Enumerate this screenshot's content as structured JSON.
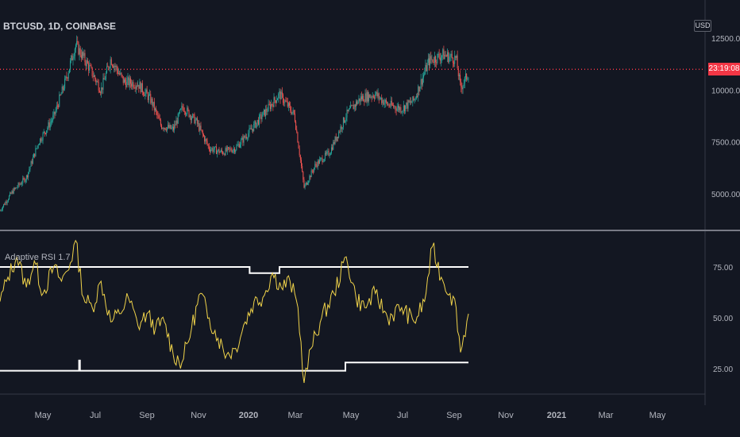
{
  "header": {
    "symbol": "BTCUSD, 1D, COINBASE"
  },
  "indicator": {
    "label": "Adaptive RSI 1.7"
  },
  "price_axis": {
    "currency": "USD",
    "countdown": "23:19:08"
  },
  "colors": {
    "background": "#131722",
    "up": "#26a69a",
    "down": "#ef5350",
    "rsi_line": "#f0d34a",
    "bands": "#ffffff",
    "price_line": "#f23645",
    "separator": "#363a45"
  },
  "chart_data": [
    {
      "type": "candlestick",
      "title": "BTCUSD, 1D, COINBASE",
      "ylabel": "USD",
      "ylim": [
        4000,
        12500
      ],
      "yticks": [
        5000,
        7500,
        10000,
        12500
      ],
      "ytick_labels": [
        "5000.00",
        "7500.00",
        "10000.00",
        "12500.00"
      ],
      "x_tick_labels": [
        "May",
        "Jul",
        "Sep",
        "Nov",
        "2020",
        "Mar",
        "May",
        "Jul",
        "Sep",
        "Nov",
        "2021",
        "Mar",
        "May"
      ],
      "price_line_value": 11000,
      "series": [
        {
          "x": [
            "2019-04-01",
            "2019-04-15",
            "2019-05-01",
            "2019-05-15",
            "2019-06-01",
            "2019-06-15",
            "2019-06-26",
            "2019-07-10",
            "2019-07-25",
            "2019-08-05",
            "2019-08-20",
            "2019-09-05",
            "2019-09-20",
            "2019-10-01",
            "2019-10-15",
            "2019-10-26",
            "2019-11-10",
            "2019-11-25",
            "2019-12-10",
            "2019-12-25",
            "2020-01-10",
            "2020-01-25",
            "2020-02-13",
            "2020-03-01",
            "2020-03-12",
            "2020-03-25",
            "2020-04-10",
            "2020-04-29",
            "2020-05-15",
            "2020-06-01",
            "2020-06-15",
            "2020-07-01",
            "2020-07-15",
            "2020-08-01",
            "2020-08-17",
            "2020-09-01",
            "2020-09-06",
            "2020-09-15"
          ],
          "values": [
            4200,
            5100,
            5800,
            7500,
            8700,
            10500,
            12200,
            11200,
            10000,
            11500,
            10400,
            10300,
            9500,
            8300,
            8100,
            9200,
            8500,
            7200,
            7000,
            7200,
            8000,
            8800,
            9800,
            8800,
            5300,
            6400,
            7000,
            8800,
            9600,
            9800,
            9300,
            9100,
            9500,
            11400,
            11700,
            11500,
            10100,
            10800
          ]
        }
      ]
    },
    {
      "type": "line",
      "title": "Adaptive RSI 1.7",
      "ylim": [
        10,
        92
      ],
      "yticks": [
        25,
        50,
        75
      ],
      "ytick_labels": [
        "25.00",
        "50.00",
        "75.00"
      ],
      "series": [
        {
          "x": [
            "2019-04-01",
            "2019-04-10",
            "2019-04-20",
            "2019-05-01",
            "2019-05-10",
            "2019-05-20",
            "2019-06-01",
            "2019-06-10",
            "2019-06-20",
            "2019-06-26",
            "2019-07-05",
            "2019-07-15",
            "2019-07-25",
            "2019-08-05",
            "2019-08-15",
            "2019-08-25",
            "2019-09-05",
            "2019-09-15",
            "2019-09-25",
            "2019-10-05",
            "2019-10-15",
            "2019-10-25",
            "2019-11-05",
            "2019-11-15",
            "2019-11-25",
            "2019-12-05",
            "2019-12-15",
            "2019-12-25",
            "2020-01-05",
            "2020-01-15",
            "2020-01-25",
            "2020-02-05",
            "2020-02-15",
            "2020-02-25",
            "2020-03-05",
            "2020-03-12",
            "2020-03-20",
            "2020-04-01",
            "2020-04-15",
            "2020-04-29",
            "2020-05-10",
            "2020-05-20",
            "2020-06-01",
            "2020-06-15",
            "2020-07-01",
            "2020-07-15",
            "2020-07-27",
            "2020-08-05",
            "2020-08-15",
            "2020-08-25",
            "2020-09-01",
            "2020-09-06",
            "2020-09-15"
          ],
          "values": [
            58,
            70,
            80,
            65,
            78,
            62,
            75,
            68,
            77,
            88,
            60,
            55,
            68,
            48,
            52,
            60,
            46,
            52,
            45,
            48,
            32,
            28,
            45,
            62,
            50,
            40,
            32,
            35,
            48,
            58,
            60,
            72,
            65,
            68,
            55,
            18,
            35,
            50,
            62,
            80,
            60,
            55,
            62,
            50,
            55,
            48,
            58,
            85,
            70,
            62,
            55,
            33,
            52
          ]
        },
        {
          "x": [
            "2019-04-01",
            "2019-06-30",
            "2019-06-30",
            "2019-07-01",
            "2019-07-01",
            "2020-03-20",
            "2020-04-28",
            "2020-04-28",
            "2020-09-15"
          ],
          "values": [
            24,
            24,
            29,
            29,
            24,
            24,
            24,
            28,
            28
          ]
        },
        {
          "x": [
            "2019-04-01",
            "2020-01-10",
            "2020-01-10",
            "2020-02-13",
            "2020-02-13",
            "2020-09-15"
          ],
          "values": [
            75,
            75,
            72,
            72,
            75,
            75
          ]
        }
      ]
    }
  ]
}
